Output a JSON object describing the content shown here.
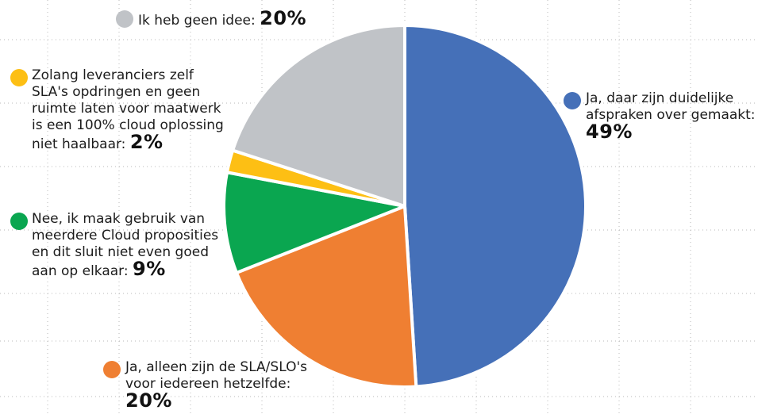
{
  "chart_data": {
    "type": "pie",
    "start_angle_deg": 0,
    "direction": "clockwise",
    "slices": [
      {
        "label": "Ja, daar zijn duidelijke afspraken over gemaakt:",
        "value": 49,
        "value_label": "49%",
        "color": "#4570B8"
      },
      {
        "label": "Ja, alleen zijn de SLA/SLO's voor iedereen hetzelfde:",
        "value": 20,
        "value_label": "20%",
        "color": "#EF7F32"
      },
      {
        "label": "Nee, ik maak gebruik van meerdere Cloud proposities en dit sluit niet even goed aan op elkaar:",
        "value": 9,
        "value_label": "9%",
        "color": "#0AA650"
      },
      {
        "label": "Zolang leveranciers zelf SLA's opdringen en geen ruimte laten voor maatwerk is een 100% cloud oplossing niet haalbaar:",
        "value": 2,
        "value_label": "2%",
        "color": "#FDBF14"
      },
      {
        "label": "Ik heb geen idee:",
        "value": 20,
        "value_label": "20%",
        "color": "#C0C3C7"
      }
    ]
  }
}
